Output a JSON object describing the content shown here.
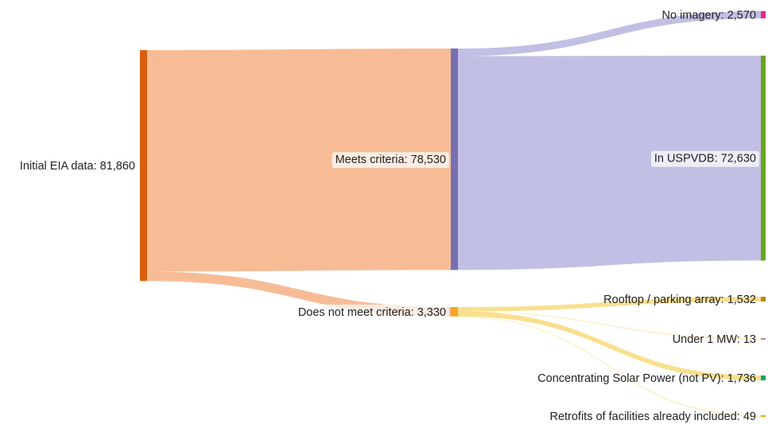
{
  "chart_data": {
    "type": "sankey",
    "nodes": [
      {
        "id": "initial",
        "label": "Initial EIA data: 81,860",
        "value": 81860,
        "color": "#d95f0e"
      },
      {
        "id": "meets",
        "label": "Meets criteria: 78,530",
        "value": 78530,
        "color": "#7570b3"
      },
      {
        "id": "not_meet",
        "label": "Does not meet criteria: 3,330",
        "value": 3330,
        "color": "#f5a623"
      },
      {
        "id": "no_imagery",
        "label": "No imagery: 2,570",
        "value": 2570,
        "color": "#e7298a"
      },
      {
        "id": "uspvdb",
        "label": "In USPVDB: 72,630",
        "value": 72630,
        "color": "#66a61e"
      },
      {
        "id": "rooftop",
        "label": "Rooftop / parking array: 1,532",
        "value": 1532,
        "color": "#b8860b"
      },
      {
        "id": "under1",
        "label": "Under 1 MW: 13",
        "value": 13,
        "color": "#999999"
      },
      {
        "id": "csp",
        "label": "Concentrating Solar Power (not PV): 1,736",
        "value": 1736,
        "color": "#1b9e77"
      },
      {
        "id": "retrofits",
        "label": "Retrofits of facilities already included: 49",
        "value": 49,
        "color": "#e6ab02"
      }
    ],
    "links": [
      {
        "source": "initial",
        "target": "meets",
        "value": 78530
      },
      {
        "source": "initial",
        "target": "not_meet",
        "value": 3330
      },
      {
        "source": "meets",
        "target": "no_imagery",
        "value": 2570
      },
      {
        "source": "meets",
        "target": "uspvdb",
        "value": 72630
      },
      {
        "source": "not_meet",
        "target": "rooftop",
        "value": 1532
      },
      {
        "source": "not_meet",
        "target": "under1",
        "value": 13
      },
      {
        "source": "not_meet",
        "target": "csp",
        "value": 1736
      },
      {
        "source": "not_meet",
        "target": "retrofits",
        "value": 49
      }
    ]
  }
}
